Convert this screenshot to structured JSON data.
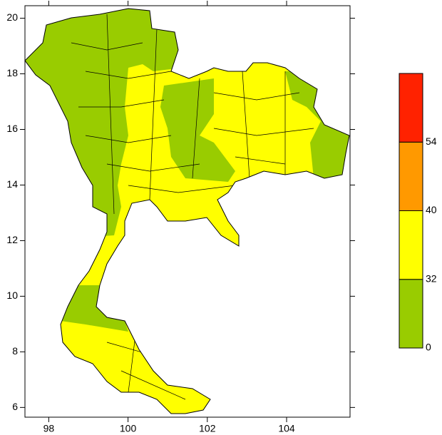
{
  "map": {
    "xlim": [
      97.4,
      105.6
    ],
    "ylim": [
      5.65,
      20.45
    ],
    "xticks": [
      98,
      100,
      102,
      104
    ],
    "yticks": [
      6,
      8,
      10,
      12,
      14,
      16,
      18,
      20
    ]
  },
  "legend": {
    "ticks": [
      0,
      32,
      40,
      54
    ],
    "colors": [
      "#99cc00",
      "#ffff00",
      "#ff9900",
      "#ff2200"
    ]
  }
}
